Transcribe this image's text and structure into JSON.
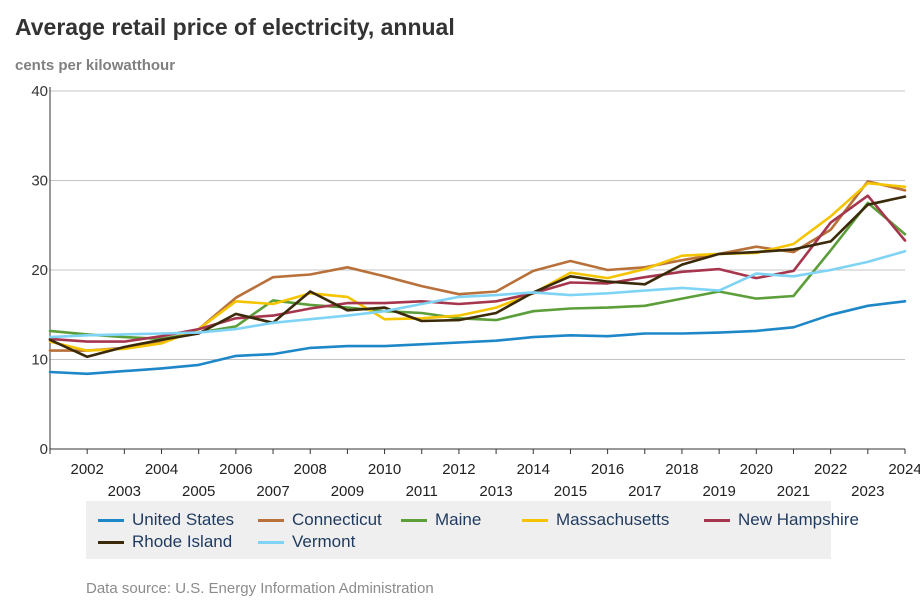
{
  "title": "Average retail price of electricity, annual",
  "subtitle": "cents per kilowatthour",
  "source": "Data source: U.S. Energy Information Administration",
  "chart_data": {
    "type": "line",
    "title": "Average retail price of electricity, annual",
    "ylabel": "cents per kilowatthour",
    "xlabel": "",
    "x": [
      2001,
      2002,
      2003,
      2004,
      2005,
      2006,
      2007,
      2008,
      2009,
      2010,
      2011,
      2012,
      2013,
      2014,
      2015,
      2016,
      2017,
      2018,
      2019,
      2020,
      2021,
      2022,
      2023,
      2024
    ],
    "xlim": [
      2001,
      2024
    ],
    "ylim": [
      0,
      40
    ],
    "yticks": [
      0,
      10,
      20,
      30,
      40
    ],
    "xticks_top": [
      2002,
      2004,
      2006,
      2008,
      2010,
      2012,
      2014,
      2016,
      2018,
      2020,
      2022,
      2024
    ],
    "xticks_bottom": [
      2003,
      2005,
      2007,
      2009,
      2011,
      2013,
      2015,
      2017,
      2019,
      2021,
      2023
    ],
    "grid": true,
    "series": [
      {
        "name": "United States",
        "color": "#1d87c8",
        "values": [
          8.6,
          8.4,
          8.7,
          9.0,
          9.4,
          10.4,
          10.6,
          11.3,
          11.5,
          11.5,
          11.7,
          11.9,
          12.1,
          12.5,
          12.7,
          12.6,
          12.9,
          12.9,
          13.0,
          13.2,
          13.6,
          15.0,
          16.0,
          16.5
        ]
      },
      {
        "name": "Connecticut",
        "color": "#b8713a",
        "values": [
          11.0,
          11.0,
          11.3,
          11.9,
          13.4,
          16.9,
          19.2,
          19.5,
          20.3,
          19.3,
          18.2,
          17.3,
          17.6,
          19.9,
          21.0,
          20.0,
          20.3,
          21.1,
          21.8,
          22.6,
          22.0,
          24.5,
          29.9,
          28.9
        ]
      },
      {
        "name": "Maine",
        "color": "#5c9e3a",
        "values": [
          13.2,
          12.8,
          12.5,
          12.3,
          13.0,
          13.7,
          16.6,
          16.1,
          15.8,
          15.4,
          15.2,
          14.6,
          14.4,
          15.4,
          15.7,
          15.8,
          16.0,
          16.8,
          17.6,
          16.8,
          17.1,
          22.2,
          27.5,
          24.0
        ]
      },
      {
        "name": "Massachusetts",
        "color": "#f5c400",
        "values": [
          12.0,
          11.0,
          11.2,
          11.8,
          13.4,
          16.5,
          16.2,
          17.4,
          17.0,
          14.5,
          14.6,
          14.9,
          15.8,
          17.4,
          19.7,
          19.1,
          20.1,
          21.6,
          21.8,
          21.9,
          22.9,
          26.0,
          29.7,
          29.3
        ]
      },
      {
        "name": "New Hampshire",
        "color": "#a6364d",
        "values": [
          12.3,
          12.0,
          12.0,
          12.6,
          13.4,
          14.6,
          14.9,
          15.7,
          16.3,
          16.3,
          16.5,
          16.2,
          16.5,
          17.4,
          18.6,
          18.5,
          19.2,
          19.8,
          20.1,
          19.1,
          19.9,
          25.3,
          28.3,
          23.3
        ]
      },
      {
        "name": "Rhode Island",
        "color": "#3b2a0a",
        "values": [
          12.2,
          10.3,
          11.4,
          12.2,
          12.9,
          15.1,
          14.1,
          17.6,
          15.5,
          15.8,
          14.3,
          14.4,
          15.2,
          17.5,
          19.3,
          18.7,
          18.4,
          20.6,
          21.8,
          22.0,
          22.3,
          23.2,
          27.3,
          28.2
        ]
      },
      {
        "name": "Vermont",
        "color": "#7fd4f5",
        "values": [
          12.5,
          12.7,
          12.8,
          12.9,
          13.0,
          13.4,
          14.1,
          14.5,
          14.9,
          15.4,
          16.2,
          17.0,
          17.2,
          17.5,
          17.2,
          17.4,
          17.7,
          18.0,
          17.7,
          19.6,
          19.3,
          20.0,
          20.9,
          22.1
        ]
      }
    ]
  }
}
